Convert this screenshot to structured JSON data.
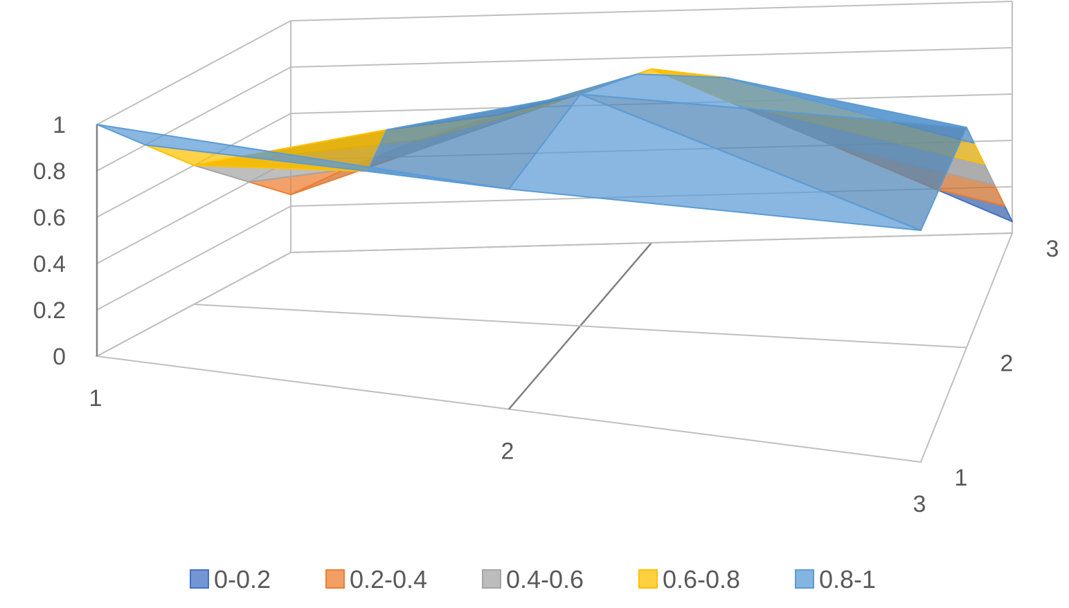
{
  "chart_data": {
    "type": "surface",
    "title": "",
    "x_categories": [
      "1",
      "2",
      "3"
    ],
    "depth_categories": [
      "1",
      "2",
      "3"
    ],
    "z_ticks": [
      "0",
      "0.2",
      "0.4",
      "0.6",
      "0.8",
      "1"
    ],
    "zlim": [
      0,
      1
    ],
    "grid": true,
    "legend_position": "bottom",
    "bands": [
      {
        "label": "0-0.2",
        "range": [
          0.0,
          0.2
        ],
        "color": "#4472c4"
      },
      {
        "label": "0.2-0.4",
        "range": [
          0.2,
          0.4
        ],
        "color": "#ed7d31"
      },
      {
        "label": "0.4-0.6",
        "range": [
          0.4,
          0.6
        ],
        "color": "#a5a5a5"
      },
      {
        "label": "0.6-0.8",
        "range": [
          0.6,
          0.8
        ],
        "color": "#ffc000"
      },
      {
        "label": "0.8-1",
        "range": [
          0.8,
          1.0
        ],
        "color": "#5b9bd5"
      }
    ],
    "values": [
      [
        1.0,
        0.95,
        1.0
      ],
      [
        0.6,
        1.0,
        0.95
      ],
      [
        0.25,
        0.75,
        0.05
      ]
    ]
  }
}
